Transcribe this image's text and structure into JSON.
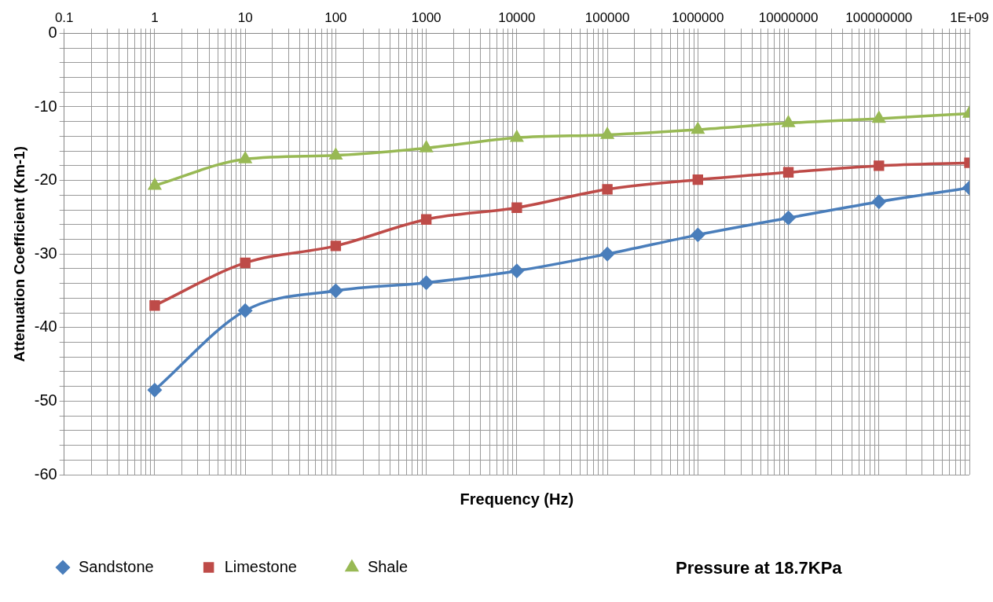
{
  "chart_data": {
    "type": "line",
    "xlabel": "Frequency (Hz)",
    "ylabel": "Attenuation Coefficient (Km-1)",
    "annotations": [
      "Pressure at 18.7KPa"
    ],
    "log": "x",
    "grid": true,
    "legend": "bottom",
    "line_style": "solid",
    "xlim": [
      0.1,
      1000000000
    ],
    "ylim": [
      -60,
      0
    ],
    "xticks": [
      0.1,
      {
        "value": 0.2,
        "label": null
      },
      {
        "value": 0.3,
        "label": null
      },
      {
        "value": 0.4,
        "label": null
      },
      {
        "value": 0.5,
        "label": null
      },
      {
        "value": 0.6,
        "label": null
      },
      {
        "value": 0.7,
        "label": null
      },
      {
        "value": 0.8,
        "label": null
      },
      {
        "value": 0.9,
        "label": null
      },
      1,
      {
        "value": 2,
        "label": null
      },
      {
        "value": 3,
        "label": null
      },
      {
        "value": 4,
        "label": null
      },
      {
        "value": 5,
        "label": null
      },
      {
        "value": 6,
        "label": null
      },
      {
        "value": 7,
        "label": null
      },
      {
        "value": 8,
        "label": null
      },
      {
        "value": 9,
        "label": null
      },
      10,
      {
        "value": 20,
        "label": null
      },
      {
        "value": 30,
        "label": null
      },
      {
        "value": 40,
        "label": null
      },
      {
        "value": 50,
        "label": null
      },
      {
        "value": 60,
        "label": null
      },
      {
        "value": 70,
        "label": null
      },
      {
        "value": 80,
        "label": null
      },
      {
        "value": 90,
        "label": null
      },
      100,
      {
        "value": 200,
        "label": null
      },
      {
        "value": 300,
        "label": null
      },
      {
        "value": 400,
        "label": null
      },
      {
        "value": 500,
        "label": null
      },
      {
        "value": 600,
        "label": null
      },
      {
        "value": 700,
        "label": null
      },
      {
        "value": 800,
        "label": null
      },
      {
        "value": 900,
        "label": null
      },
      1000,
      {
        "value": 2000,
        "label": null
      },
      {
        "value": 3000,
        "label": null
      },
      {
        "value": 4000,
        "label": null
      },
      {
        "value": 5000,
        "label": null
      },
      {
        "value": 6000,
        "label": null
      },
      {
        "value": 7000,
        "label": null
      },
      {
        "value": 8000,
        "label": null
      },
      {
        "value": 9000,
        "label": null
      },
      10000,
      {
        "value": 20000,
        "label": null
      },
      {
        "value": 30000,
        "label": null
      },
      {
        "value": 40000,
        "label": null
      },
      {
        "value": 50000,
        "label": null
      },
      {
        "value": 60000,
        "label": null
      },
      {
        "value": 70000,
        "label": null
      },
      {
        "value": 80000,
        "label": null
      },
      {
        "value": 90000,
        "label": null
      },
      100000,
      {
        "value": 200000,
        "label": null
      },
      {
        "value": 300000,
        "label": null
      },
      {
        "value": 400000,
        "label": null
      },
      {
        "value": 500000,
        "label": null
      },
      {
        "value": 600000,
        "label": null
      },
      {
        "value": 700000,
        "label": null
      },
      {
        "value": 800000,
        "label": null
      },
      {
        "value": 900000,
        "label": null
      },
      1000000,
      {
        "value": 2000000,
        "label": null
      },
      {
        "value": 3000000,
        "label": null
      },
      {
        "value": 4000000,
        "label": null
      },
      {
        "value": 5000000,
        "label": null
      },
      {
        "value": 6000000,
        "label": null
      },
      {
        "value": 7000000,
        "label": null
      },
      {
        "value": 8000000,
        "label": null
      },
      {
        "value": 9000000,
        "label": null
      },
      10000000,
      {
        "value": 20000000,
        "label": null
      },
      {
        "value": 30000000,
        "label": null
      },
      {
        "value": 40000000,
        "label": null
      },
      {
        "value": 50000000,
        "label": null
      },
      {
        "value": 60000000,
        "label": null
      },
      {
        "value": 70000000,
        "label": null
      },
      {
        "value": 80000000,
        "label": null
      },
      {
        "value": 90000000,
        "label": null
      },
      100000000,
      {
        "value": 200000000,
        "label": null
      },
      {
        "value": 300000000,
        "label": null
      },
      {
        "value": 400000000,
        "label": null
      },
      {
        "value": 500000000,
        "label": null
      },
      {
        "value": 600000000,
        "label": null
      },
      {
        "value": 700000000,
        "label": null
      },
      {
        "value": 800000000,
        "label": null
      },
      {
        "value": 900000000,
        "label": null
      },
      {
        "value": 1000000000,
        "label": "1E+09"
      }
    ],
    "yticks": [
      -60,
      {
        "value": -58,
        "label": null
      },
      {
        "value": -56,
        "label": null
      },
      {
        "value": -54,
        "label": null
      },
      {
        "value": -52,
        "label": null
      },
      -50,
      {
        "value": -48,
        "label": null
      },
      {
        "value": -46,
        "label": null
      },
      {
        "value": -44,
        "label": null
      },
      {
        "value": -42,
        "label": null
      },
      -40,
      {
        "value": -38,
        "label": null
      },
      {
        "value": -36,
        "label": null
      },
      {
        "value": -34,
        "label": null
      },
      {
        "value": -32,
        "label": null
      },
      -30,
      {
        "value": -28,
        "label": null
      },
      {
        "value": -26,
        "label": null
      },
      {
        "value": -24,
        "label": null
      },
      {
        "value": -22,
        "label": null
      },
      -20,
      {
        "value": -18,
        "label": null
      },
      {
        "value": -16,
        "label": null
      },
      {
        "value": -14,
        "label": null
      },
      {
        "value": -12,
        "label": null
      },
      -10,
      {
        "value": -8,
        "label": null
      },
      {
        "value": -6,
        "label": null
      },
      {
        "value": -4,
        "label": null
      },
      {
        "value": -2,
        "label": null
      },
      0
    ],
    "x": [
      1,
      10,
      100,
      1000,
      10000,
      100000,
      1000000,
      10000000,
      100000000,
      1000000000
    ],
    "series": [
      {
        "name": "Sandstone",
        "color": "#4a7ebb",
        "marker": "diamond",
        "values": [
          -48.5,
          -37.7,
          -35.0,
          -33.9,
          -32.3,
          -30.0,
          -27.4,
          -25.1,
          -22.9,
          -21.0
        ]
      },
      {
        "name": "Limestone",
        "color": "#be4b48",
        "marker": "square",
        "values": [
          -37.0,
          -31.2,
          -28.9,
          -25.3,
          -23.7,
          -21.2,
          -19.9,
          -18.9,
          -18.0,
          -17.6
        ]
      },
      {
        "name": "Shale",
        "color": "#98b954",
        "marker": "triangle",
        "values": [
          -20.7,
          -17.1,
          -16.6,
          -15.6,
          -14.2,
          -13.8,
          -13.1,
          -12.2,
          -11.6,
          -10.9
        ]
      }
    ]
  }
}
